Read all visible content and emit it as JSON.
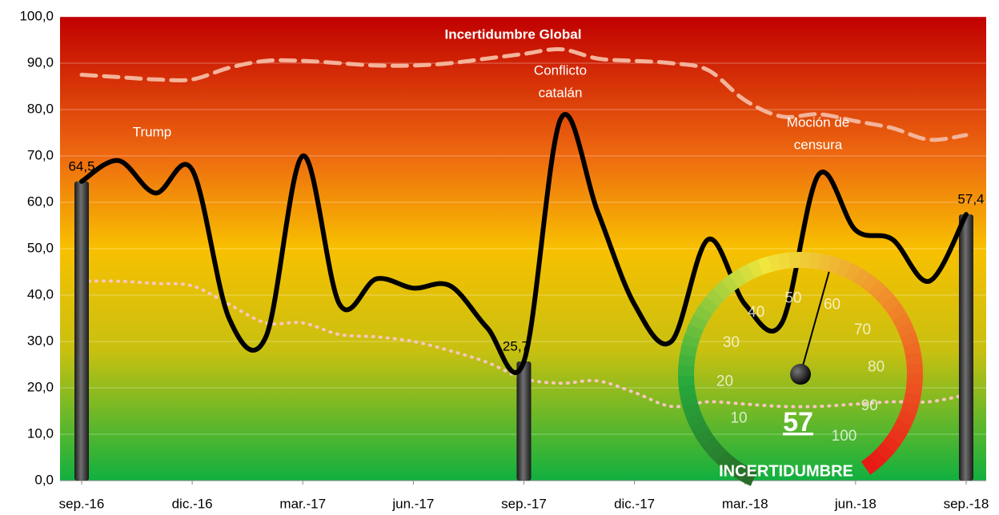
{
  "chart_data": {
    "type": "line",
    "title": "Incertidumbre Global",
    "categories": [
      "sep.-16",
      null,
      null,
      "dic.-16",
      null,
      null,
      "mar.-17",
      null,
      null,
      "jun.-17",
      null,
      null,
      "sep.-17",
      null,
      null,
      "dic.-17",
      null,
      null,
      "mar.-18",
      null,
      null,
      "jun.-18",
      null,
      null,
      "sep.-18"
    ],
    "series": [
      {
        "type": "bar",
        "color": "#3a3a3a",
        "values": [
          64.5,
          null,
          null,
          null,
          null,
          null,
          null,
          null,
          null,
          null,
          null,
          null,
          25.7,
          null,
          null,
          null,
          null,
          null,
          null,
          null,
          null,
          null,
          null,
          null,
          57.4
        ],
        "value_labels": [
          "64,5",
          null,
          null,
          null,
          null,
          null,
          null,
          null,
          null,
          null,
          null,
          null,
          "25,7",
          null,
          null,
          null,
          null,
          null,
          null,
          null,
          null,
          null,
          null,
          null,
          "57,4"
        ]
      },
      {
        "type": "line",
        "style": "solid",
        "color": "#000000",
        "values": [
          64.5,
          69,
          62,
          67,
          35,
          31,
          70,
          38,
          43.5,
          41.5,
          42,
          33,
          25.7,
          78,
          58,
          38,
          30,
          52,
          38,
          34,
          66,
          54,
          52,
          43,
          57.4
        ]
      },
      {
        "type": "line",
        "style": "dashed",
        "color": "#f4b39a",
        "values": [
          87.5,
          87,
          86.5,
          86.5,
          89,
          90.5,
          90.5,
          90,
          89.5,
          89.5,
          90,
          91,
          92,
          93,
          91,
          90.5,
          90,
          88.5,
          82,
          78.5,
          79,
          77.5,
          76,
          73.5,
          74.5
        ]
      },
      {
        "type": "line",
        "style": "dotted",
        "color": "#f8c6c0",
        "values": [
          43,
          43,
          42.5,
          42,
          38,
          34,
          34,
          31.5,
          31,
          30,
          28,
          25.5,
          22,
          21,
          21.5,
          19,
          16,
          17,
          16.5,
          16,
          16,
          16.5,
          17,
          17,
          18.5
        ]
      }
    ],
    "annotations": [
      [
        "Trump"
      ],
      [
        "Conflicto",
        "catalán"
      ],
      [
        "Moción de",
        "censura"
      ]
    ],
    "ylim": [
      0,
      100
    ],
    "yticks": [
      {
        "value": 0,
        "label": "0,0"
      },
      {
        "value": 10,
        "label": "10,0"
      },
      {
        "value": 20,
        "label": "20,0"
      },
      {
        "value": 30,
        "label": "30,0"
      },
      {
        "value": 40,
        "label": "40,0"
      },
      {
        "value": 50,
        "label": "50,0"
      },
      {
        "value": 60,
        "label": "60,0"
      },
      {
        "value": 70,
        "label": "70,0"
      },
      {
        "value": 80,
        "label": "80,0"
      },
      {
        "value": 90,
        "label": "90,0"
      },
      {
        "value": 100,
        "label": "100,0"
      }
    ],
    "grid": true,
    "gauge": {
      "value": 57,
      "value_label": "57",
      "label": "INCERTIDUMBRE",
      "ticks": [
        10,
        20,
        30,
        40,
        50,
        60,
        70,
        80,
        90,
        100
      ],
      "range": [
        0,
        100
      ]
    }
  }
}
